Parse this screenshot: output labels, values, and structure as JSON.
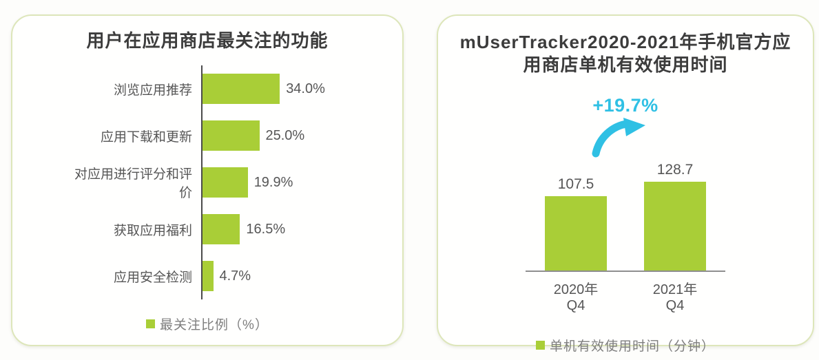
{
  "left_panel": {
    "title": "用户在应用商店最关注的功能",
    "legend": "最关注比例（%）"
  },
  "right_panel": {
    "title": "mUserTracker2020-2021年手机官方应用商店单机有效使用时间",
    "title_line1": "mUserTracker2020-2021年手机官方应",
    "title_line2": "用商店单机有效使用时间",
    "growth_label": "+19.7%",
    "legend": "单机有效使用时间（分钟）"
  },
  "colors": {
    "bar_green": "#a9ce37",
    "accent_cyan": "#2fc0e4",
    "panel_border": "#dde6ba",
    "title_text": "#3c3c3c",
    "label_text": "#565656",
    "legend_text": "#7e7e7e"
  },
  "chart_data": [
    {
      "type": "bar",
      "orientation": "horizontal",
      "title": "用户在应用商店最关注的功能",
      "categories": [
        "浏览应用推荐",
        "应用下载和更新",
        "对应用进行评分和评价",
        "获取应用福利",
        "应用安全检测"
      ],
      "values": [
        34.0,
        25.0,
        19.9,
        16.5,
        4.7
      ],
      "value_labels": [
        "34.0%",
        "25.0%",
        "19.9%",
        "16.5%",
        "4.7%"
      ],
      "legend": [
        "最关注比例（%）"
      ],
      "legend_position": "bottom",
      "xlabel": "",
      "ylabel": "",
      "xlim": [
        0,
        40
      ],
      "grid": false,
      "bar_color": "#a9ce37"
    },
    {
      "type": "bar",
      "orientation": "vertical",
      "title": "mUserTracker2020-2021年手机官方应用商店单机有效使用时间",
      "categories": [
        "2020年Q4",
        "2021年Q4"
      ],
      "values": [
        107.5,
        128.7
      ],
      "value_labels": [
        "107.5",
        "128.7"
      ],
      "annotation": "+19.7%",
      "annotation_color": "#2fc0e4",
      "legend": [
        "单机有效使用时间（分钟）"
      ],
      "legend_position": "bottom",
      "xlabel": "",
      "ylabel": "",
      "ylim": [
        0,
        140
      ],
      "grid": false,
      "bar_color": "#a9ce37"
    }
  ]
}
